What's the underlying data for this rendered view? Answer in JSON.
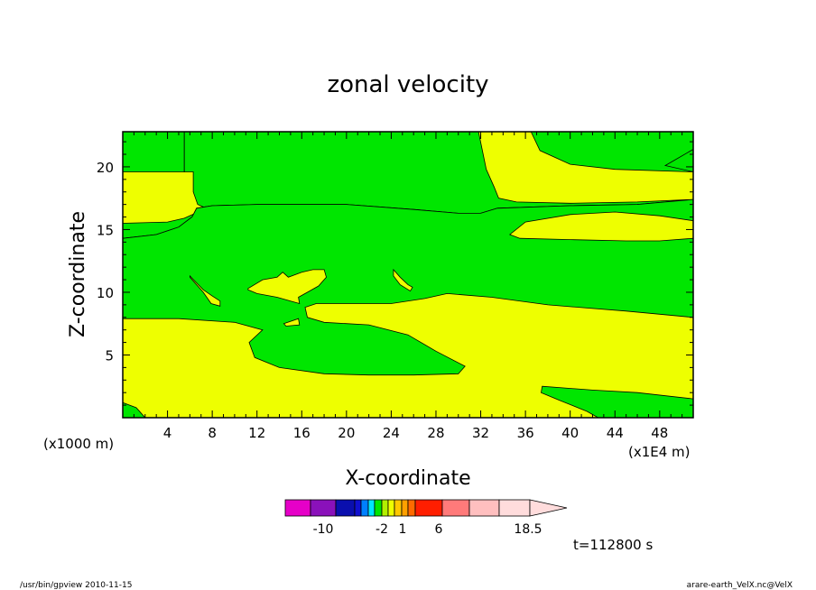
{
  "chart_data": {
    "type": "heatmap",
    "title": "zonal velocity",
    "xlabel": "X-coordinate",
    "ylabel": "Z-coordinate",
    "x_unit_label": "(x1E4 m)",
    "y_unit_label": "(x1000 m)",
    "xlim": [
      0,
      51
    ],
    "ylim": [
      0,
      22.8
    ],
    "x_ticks": [
      "4",
      "8",
      "12",
      "16",
      "20",
      "24",
      "28",
      "32",
      "36",
      "40",
      "44",
      "48"
    ],
    "y_ticks": [
      "5",
      "10",
      "15",
      "20"
    ],
    "x_tick_values": [
      4,
      8,
      12,
      16,
      20,
      24,
      28,
      32,
      36,
      40,
      44,
      48
    ],
    "y_tick_values": [
      5,
      10,
      15,
      20
    ],
    "background_color": "#eeff00",
    "regions": [
      {
        "name": "upper-left-green",
        "color": "#00e600",
        "points": [
          [
            0,
            19.6
          ],
          [
            5.5,
            19.6
          ],
          [
            5.5,
            22.8
          ],
          [
            0,
            22.8
          ]
        ]
      },
      {
        "name": "band-green",
        "color": "#00e600",
        "points": [
          [
            0,
            14.3
          ],
          [
            3,
            14.6
          ],
          [
            5,
            15.2
          ],
          [
            6.2,
            16.0
          ],
          [
            6.6,
            16.7
          ],
          [
            8,
            16.9
          ],
          [
            12,
            17.0
          ],
          [
            20,
            17.0
          ],
          [
            26,
            16.6
          ],
          [
            30,
            16.3
          ],
          [
            32,
            16.3
          ],
          [
            33.5,
            16.7
          ],
          [
            40,
            16.9
          ],
          [
            46,
            17.0
          ],
          [
            51,
            17.4
          ],
          [
            51,
            22.8
          ],
          [
            36.5,
            22.8
          ],
          [
            37.3,
            21.3
          ],
          [
            40,
            20.2
          ],
          [
            44,
            19.8
          ],
          [
            51,
            19.6
          ],
          [
            51,
            21.4
          ],
          [
            48.5,
            20.1
          ],
          [
            51,
            19.6
          ],
          [
            51,
            17.4
          ],
          [
            46,
            17.2
          ],
          [
            40,
            17.1
          ],
          [
            35.2,
            17.2
          ],
          [
            33.6,
            17.5
          ],
          [
            33.2,
            18.4
          ],
          [
            32.5,
            19.8
          ],
          [
            31.8,
            22.8
          ],
          [
            5.5,
            22.8
          ],
          [
            5.5,
            19.6
          ],
          [
            6.3,
            19.6
          ],
          [
            6.3,
            18.0
          ],
          [
            6.7,
            17.0
          ],
          [
            7.2,
            16.8
          ],
          [
            6.5,
            16.3
          ],
          [
            5.5,
            15.9
          ],
          [
            4,
            15.6
          ],
          [
            0,
            15.5
          ]
        ]
      },
      {
        "name": "main-green",
        "color": "#00e600",
        "points": [
          [
            0,
            7.9
          ],
          [
            5,
            7.9
          ],
          [
            10,
            7.6
          ],
          [
            12.5,
            7.0
          ],
          [
            11.3,
            6.0
          ],
          [
            11.8,
            4.8
          ],
          [
            14,
            4.0
          ],
          [
            18,
            3.5
          ],
          [
            22,
            3.4
          ],
          [
            26,
            3.4
          ],
          [
            30,
            3.5
          ],
          [
            30.6,
            4.1
          ],
          [
            28,
            5.3
          ],
          [
            25.5,
            6.6
          ],
          [
            22,
            7.4
          ],
          [
            18,
            7.6
          ],
          [
            16.5,
            8.0
          ],
          [
            16.3,
            8.8
          ],
          [
            17.3,
            9.1
          ],
          [
            20,
            9.1
          ],
          [
            24,
            9.1
          ],
          [
            27,
            9.5
          ],
          [
            29,
            9.9
          ],
          [
            33,
            9.6
          ],
          [
            38,
            9.0
          ],
          [
            45,
            8.5
          ],
          [
            51,
            8.0
          ],
          [
            51,
            14.3
          ],
          [
            48,
            14.1
          ],
          [
            45,
            14.1
          ],
          [
            40,
            14.2
          ],
          [
            35.5,
            14.3
          ],
          [
            34.6,
            14.6
          ],
          [
            36,
            15.6
          ],
          [
            40,
            16.2
          ],
          [
            44,
            16.4
          ],
          [
            48,
            16.1
          ],
          [
            51,
            15.7
          ],
          [
            51,
            17.4
          ],
          [
            46,
            17.0
          ],
          [
            40,
            16.9
          ],
          [
            33.5,
            16.7
          ],
          [
            32,
            16.3
          ],
          [
            30,
            16.3
          ],
          [
            26,
            16.6
          ],
          [
            20,
            17.0
          ],
          [
            12,
            17.0
          ],
          [
            8,
            16.9
          ],
          [
            6.6,
            16.7
          ],
          [
            6.2,
            16.0
          ],
          [
            5,
            15.2
          ],
          [
            3,
            14.6
          ],
          [
            0,
            14.3
          ]
        ]
      },
      {
        "name": "lower-right-green",
        "color": "#00e600",
        "points": [
          [
            51,
            1.5
          ],
          [
            46,
            2.0
          ],
          [
            42,
            2.2
          ],
          [
            37.5,
            2.5
          ],
          [
            37.4,
            2.0
          ],
          [
            39,
            1.4
          ],
          [
            41.5,
            0.5
          ],
          [
            42.5,
            0
          ],
          [
            51,
            0
          ]
        ]
      },
      {
        "name": "lower-left-green",
        "color": "#00e600",
        "points": [
          [
            0,
            1.2
          ],
          [
            1.2,
            0.8
          ],
          [
            2,
            0
          ],
          [
            0,
            0
          ]
        ]
      },
      {
        "name": "mid-yellow-patch",
        "color": "#eeff00",
        "points": [
          [
            11.2,
            10.3
          ],
          [
            12.5,
            11.0
          ],
          [
            13.8,
            11.2
          ],
          [
            14.3,
            11.6
          ],
          [
            14.8,
            11.2
          ],
          [
            16,
            11.6
          ],
          [
            17,
            11.8
          ],
          [
            18,
            11.8
          ],
          [
            18.2,
            11.2
          ],
          [
            17.5,
            10.5
          ],
          [
            16.5,
            10.0
          ],
          [
            15.7,
            9.6
          ],
          [
            15.8,
            9.1
          ],
          [
            15,
            9.3
          ],
          [
            13.8,
            9.6
          ],
          [
            12,
            9.9
          ],
          [
            11.2,
            10.2
          ]
        ]
      },
      {
        "name": "yellow-blob-left",
        "color": "#eeff00",
        "points": [
          [
            6,
            11.3
          ],
          [
            7.2,
            10.2
          ],
          [
            8,
            9.7
          ],
          [
            8.7,
            9.3
          ],
          [
            8.7,
            8.9
          ],
          [
            7.9,
            9.1
          ],
          [
            7.2,
            10.0
          ],
          [
            6,
            11.2
          ]
        ]
      },
      {
        "name": "yellow-blob-center",
        "color": "#eeff00",
        "points": [
          [
            24.2,
            11.8
          ],
          [
            24.8,
            11.2
          ],
          [
            25.5,
            10.6
          ],
          [
            25.9,
            10.4
          ],
          [
            25.7,
            10.1
          ],
          [
            24.8,
            10.6
          ],
          [
            24.2,
            11.3
          ]
        ]
      },
      {
        "name": "yellow-small-dot",
        "color": "#eeff00",
        "points": [
          [
            14.4,
            7.5
          ],
          [
            15.7,
            7.9
          ],
          [
            15.8,
            7.4
          ],
          [
            14.6,
            7.3
          ]
        ]
      }
    ],
    "colorbar": {
      "labels": [
        "-10",
        "-2",
        "1",
        "6",
        "18.5"
      ],
      "colors": [
        "#e600c8",
        "#8a11ba",
        "#0a0fae",
        "#1010d0",
        "#0080ff",
        "#00e6ff",
        "#00e600",
        "#b2f000",
        "#eeff00",
        "#ffc800",
        "#ffa000",
        "#ff6a00",
        "#ff1e00",
        "#ff7a7a",
        "#ffbfbf",
        "#ffdcdc"
      ]
    },
    "time_label": "t=112800 s"
  },
  "footer": {
    "left": "/usr/bin/gpview   2010-11-15",
    "right": "arare-earth_VelX.nc@VelX"
  }
}
